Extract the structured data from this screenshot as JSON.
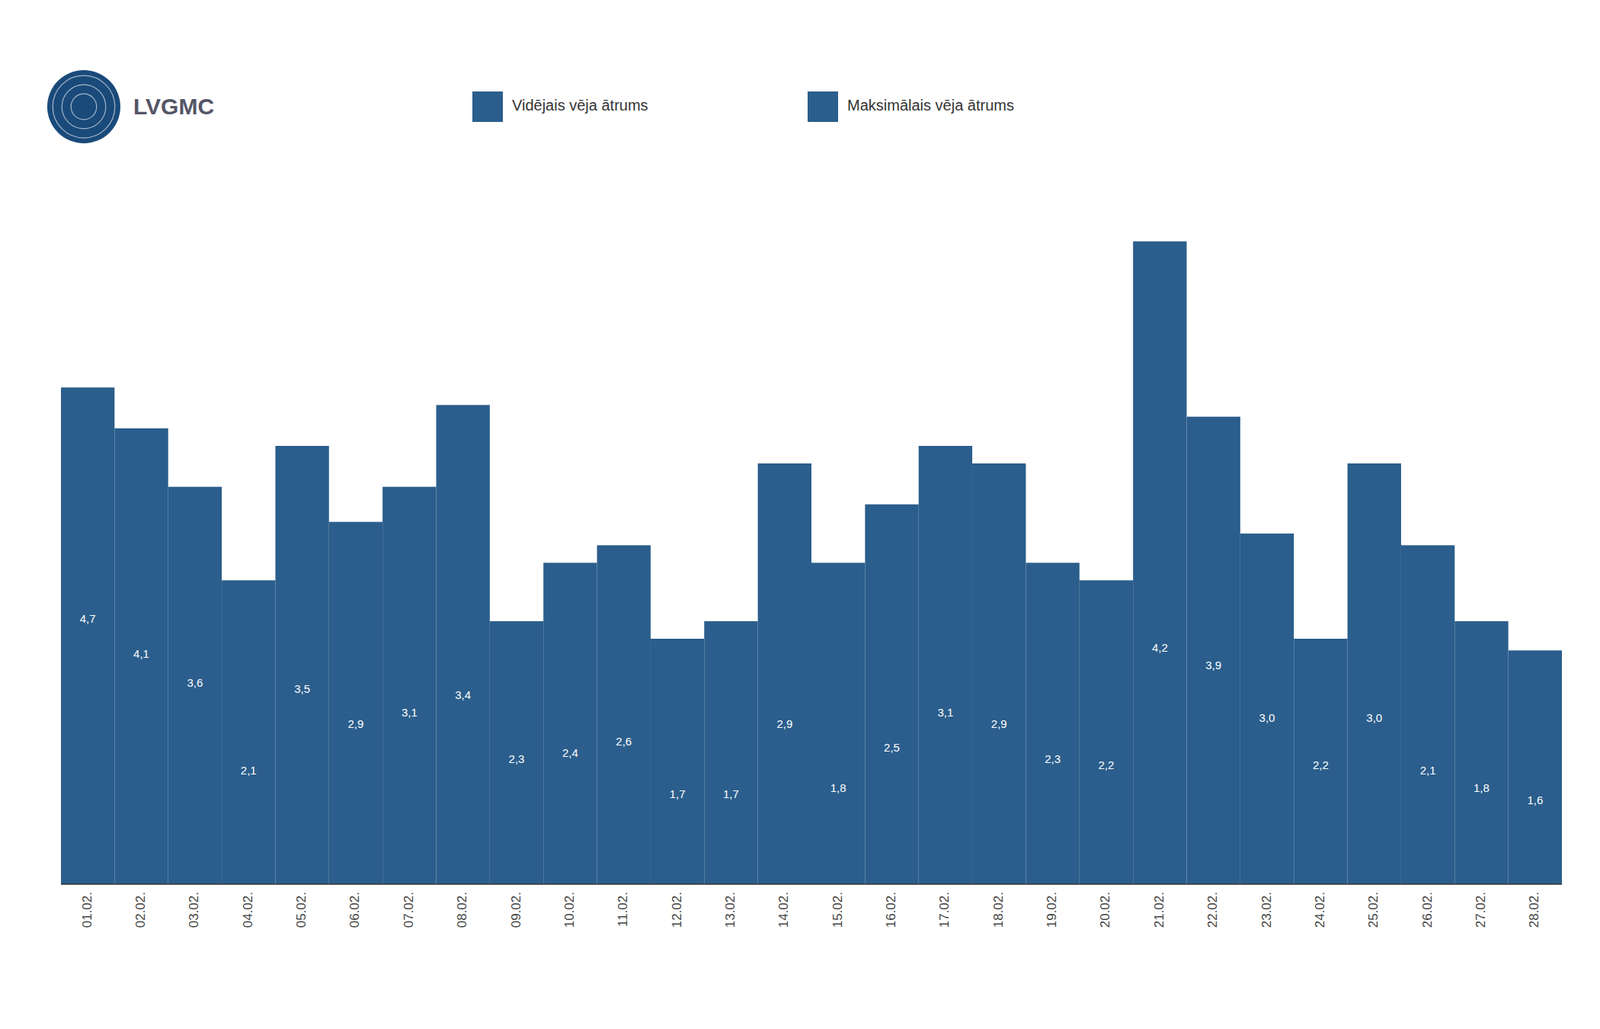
{
  "chart_data": {
    "type": "bar",
    "annotations": [
      "LVGMC"
    ],
    "categories": [
      "01.02.",
      "02.02.",
      "03.02.",
      "04.02.",
      "05.02.",
      "06.02.",
      "07.02.",
      "08.02.",
      "09.02.",
      "10.02.",
      "11.02.",
      "12.02.",
      "13.02.",
      "14.02.",
      "15.02.",
      "16.02.",
      "17.02.",
      "18.02.",
      "19.02.",
      "20.02.",
      "21.02.",
      "22.02.",
      "23.02.",
      "24.02.",
      "25.02.",
      "26.02.",
      "27.02.",
      "28.02."
    ],
    "series": [
      {
        "name": "Vidējais vēja ātrums",
        "type": "text",
        "color": "#2b5e8c",
        "values": [
          4.7,
          4.1,
          3.6,
          2.1,
          3.5,
          2.9,
          3.1,
          3.4,
          2.3,
          2.4,
          2.6,
          1.7,
          1.7,
          2.9,
          1.8,
          2.5,
          3.1,
          2.9,
          2.3,
          2.2,
          4.2,
          3.9,
          3.0,
          2.2,
          3.0,
          2.1,
          1.8,
          1.6
        ],
        "value_labels": [
          "4,7",
          "4,1",
          "3,6",
          "2,1",
          "3,5",
          "2,9",
          "3,1",
          "3,4",
          "2,3",
          "2,4",
          "2,6",
          "1,7",
          "1,7",
          "2,9",
          "1,8",
          "2,5",
          "3,1",
          "2,9",
          "2,3",
          "2,2",
          "4,2",
          "3,9",
          "3,0",
          "2,2",
          "3,0",
          "2,1",
          "1,8",
          "1,6"
        ]
      },
      {
        "name": "Maksimālais vēja ātrums",
        "type": "bar",
        "color": "#2b5e8c",
        "values": [
          8.5,
          7.8,
          6.8,
          5.2,
          7.5,
          6.2,
          6.8,
          8.2,
          4.5,
          5.5,
          5.8,
          4.2,
          4.5,
          7.2,
          5.5,
          6.5,
          7.5,
          7.2,
          5.5,
          5.2,
          11.0,
          8.0,
          6.0,
          4.2,
          7.2,
          5.8,
          4.5,
          4.0
        ]
      }
    ],
    "ylim": [
      0,
      12
    ],
    "tick_labels": "x",
    "grid": false,
    "legend": "top"
  }
}
